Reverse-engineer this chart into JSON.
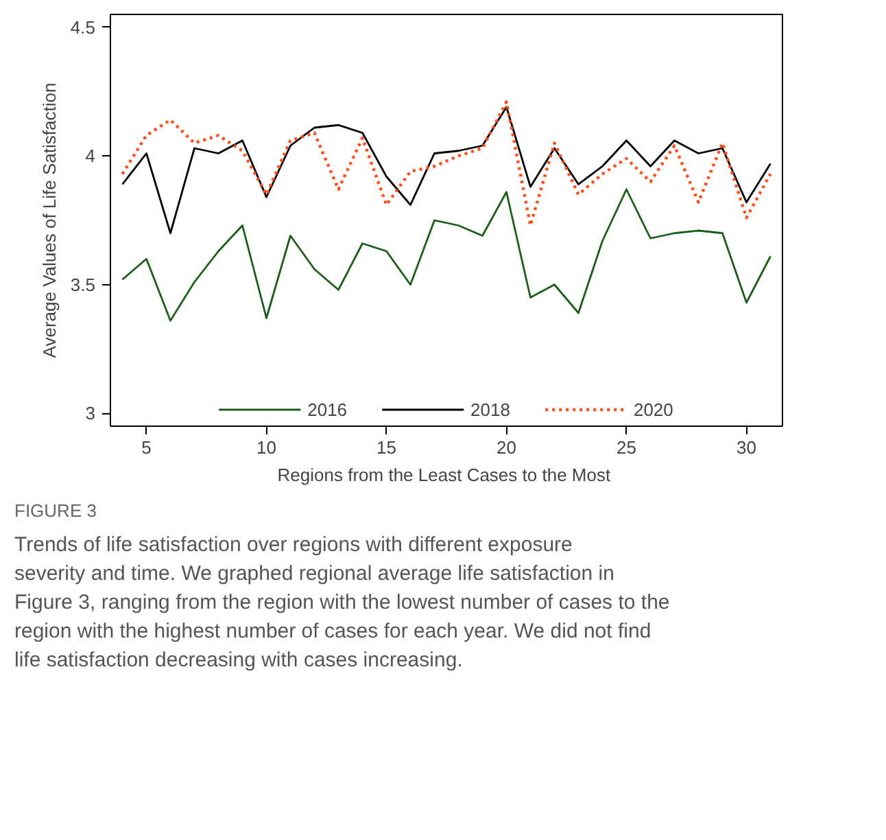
{
  "chart_data": {
    "type": "line",
    "xlabel": "Regions from  the Least Cases to the Most",
    "ylabel": "Average Values of Life Satisfaction",
    "x": [
      4,
      5,
      6,
      7,
      8,
      9,
      10,
      11,
      12,
      13,
      14,
      15,
      16,
      17,
      18,
      19,
      20,
      21,
      22,
      23,
      24,
      25,
      26,
      27,
      28,
      29,
      30,
      31
    ],
    "series": [
      {
        "name": "2016",
        "color": "#1a5e1a",
        "line_style": "solid",
        "values": [
          3.52,
          3.6,
          3.36,
          3.51,
          3.63,
          3.73,
          3.37,
          3.69,
          3.56,
          3.48,
          3.66,
          3.63,
          3.5,
          3.75,
          3.73,
          3.69,
          3.86,
          3.45,
          3.5,
          3.39,
          3.67,
          3.87,
          3.68,
          3.7,
          3.71,
          3.7,
          3.43,
          3.61
        ]
      },
      {
        "name": "2018",
        "color": "#000000",
        "line_style": "solid",
        "values": [
          3.89,
          4.01,
          3.7,
          4.03,
          4.01,
          4.06,
          3.84,
          4.04,
          4.11,
          4.12,
          4.09,
          3.92,
          3.81,
          4.01,
          4.02,
          4.04,
          4.19,
          3.88,
          4.03,
          3.89,
          3.96,
          4.06,
          3.96,
          4.06,
          4.01,
          4.03,
          3.82,
          3.97
        ]
      },
      {
        "name": "2020",
        "color": "#ff4d1a",
        "line_style": "dotted",
        "values": [
          3.93,
          4.08,
          4.14,
          4.05,
          4.08,
          4.02,
          3.85,
          4.06,
          4.09,
          3.87,
          4.07,
          3.81,
          3.94,
          3.96,
          4.0,
          4.03,
          4.21,
          3.73,
          4.05,
          3.85,
          3.93,
          3.99,
          3.9,
          4.04,
          3.82,
          4.05,
          3.76,
          3.93
        ]
      }
    ],
    "xlim": [
      3.5,
      31.5
    ],
    "ylim": [
      2.95,
      4.55
    ],
    "xticks": [
      5,
      10,
      15,
      20,
      25,
      30
    ],
    "yticks": [
      {
        "value": 3,
        "label": "3"
      },
      {
        "value": 3.5,
        "label": "3.5"
      },
      {
        "value": 4,
        "label": "4"
      },
      {
        "value": 4.5,
        "label": "4.5"
      }
    ],
    "grid": false,
    "legend": "bottom",
    "marker": "none",
    "annotations": [
      "FIGURE 3",
      "Trends of life satisfaction over regions with different exposure severity and time. We graphed regional average life satisfaction in Figure 3, ranging from the region with the lowest number of cases to the region with the highest number of cases for each year. We did not find life satisfaction decreasing with cases increasing."
    ]
  }
}
